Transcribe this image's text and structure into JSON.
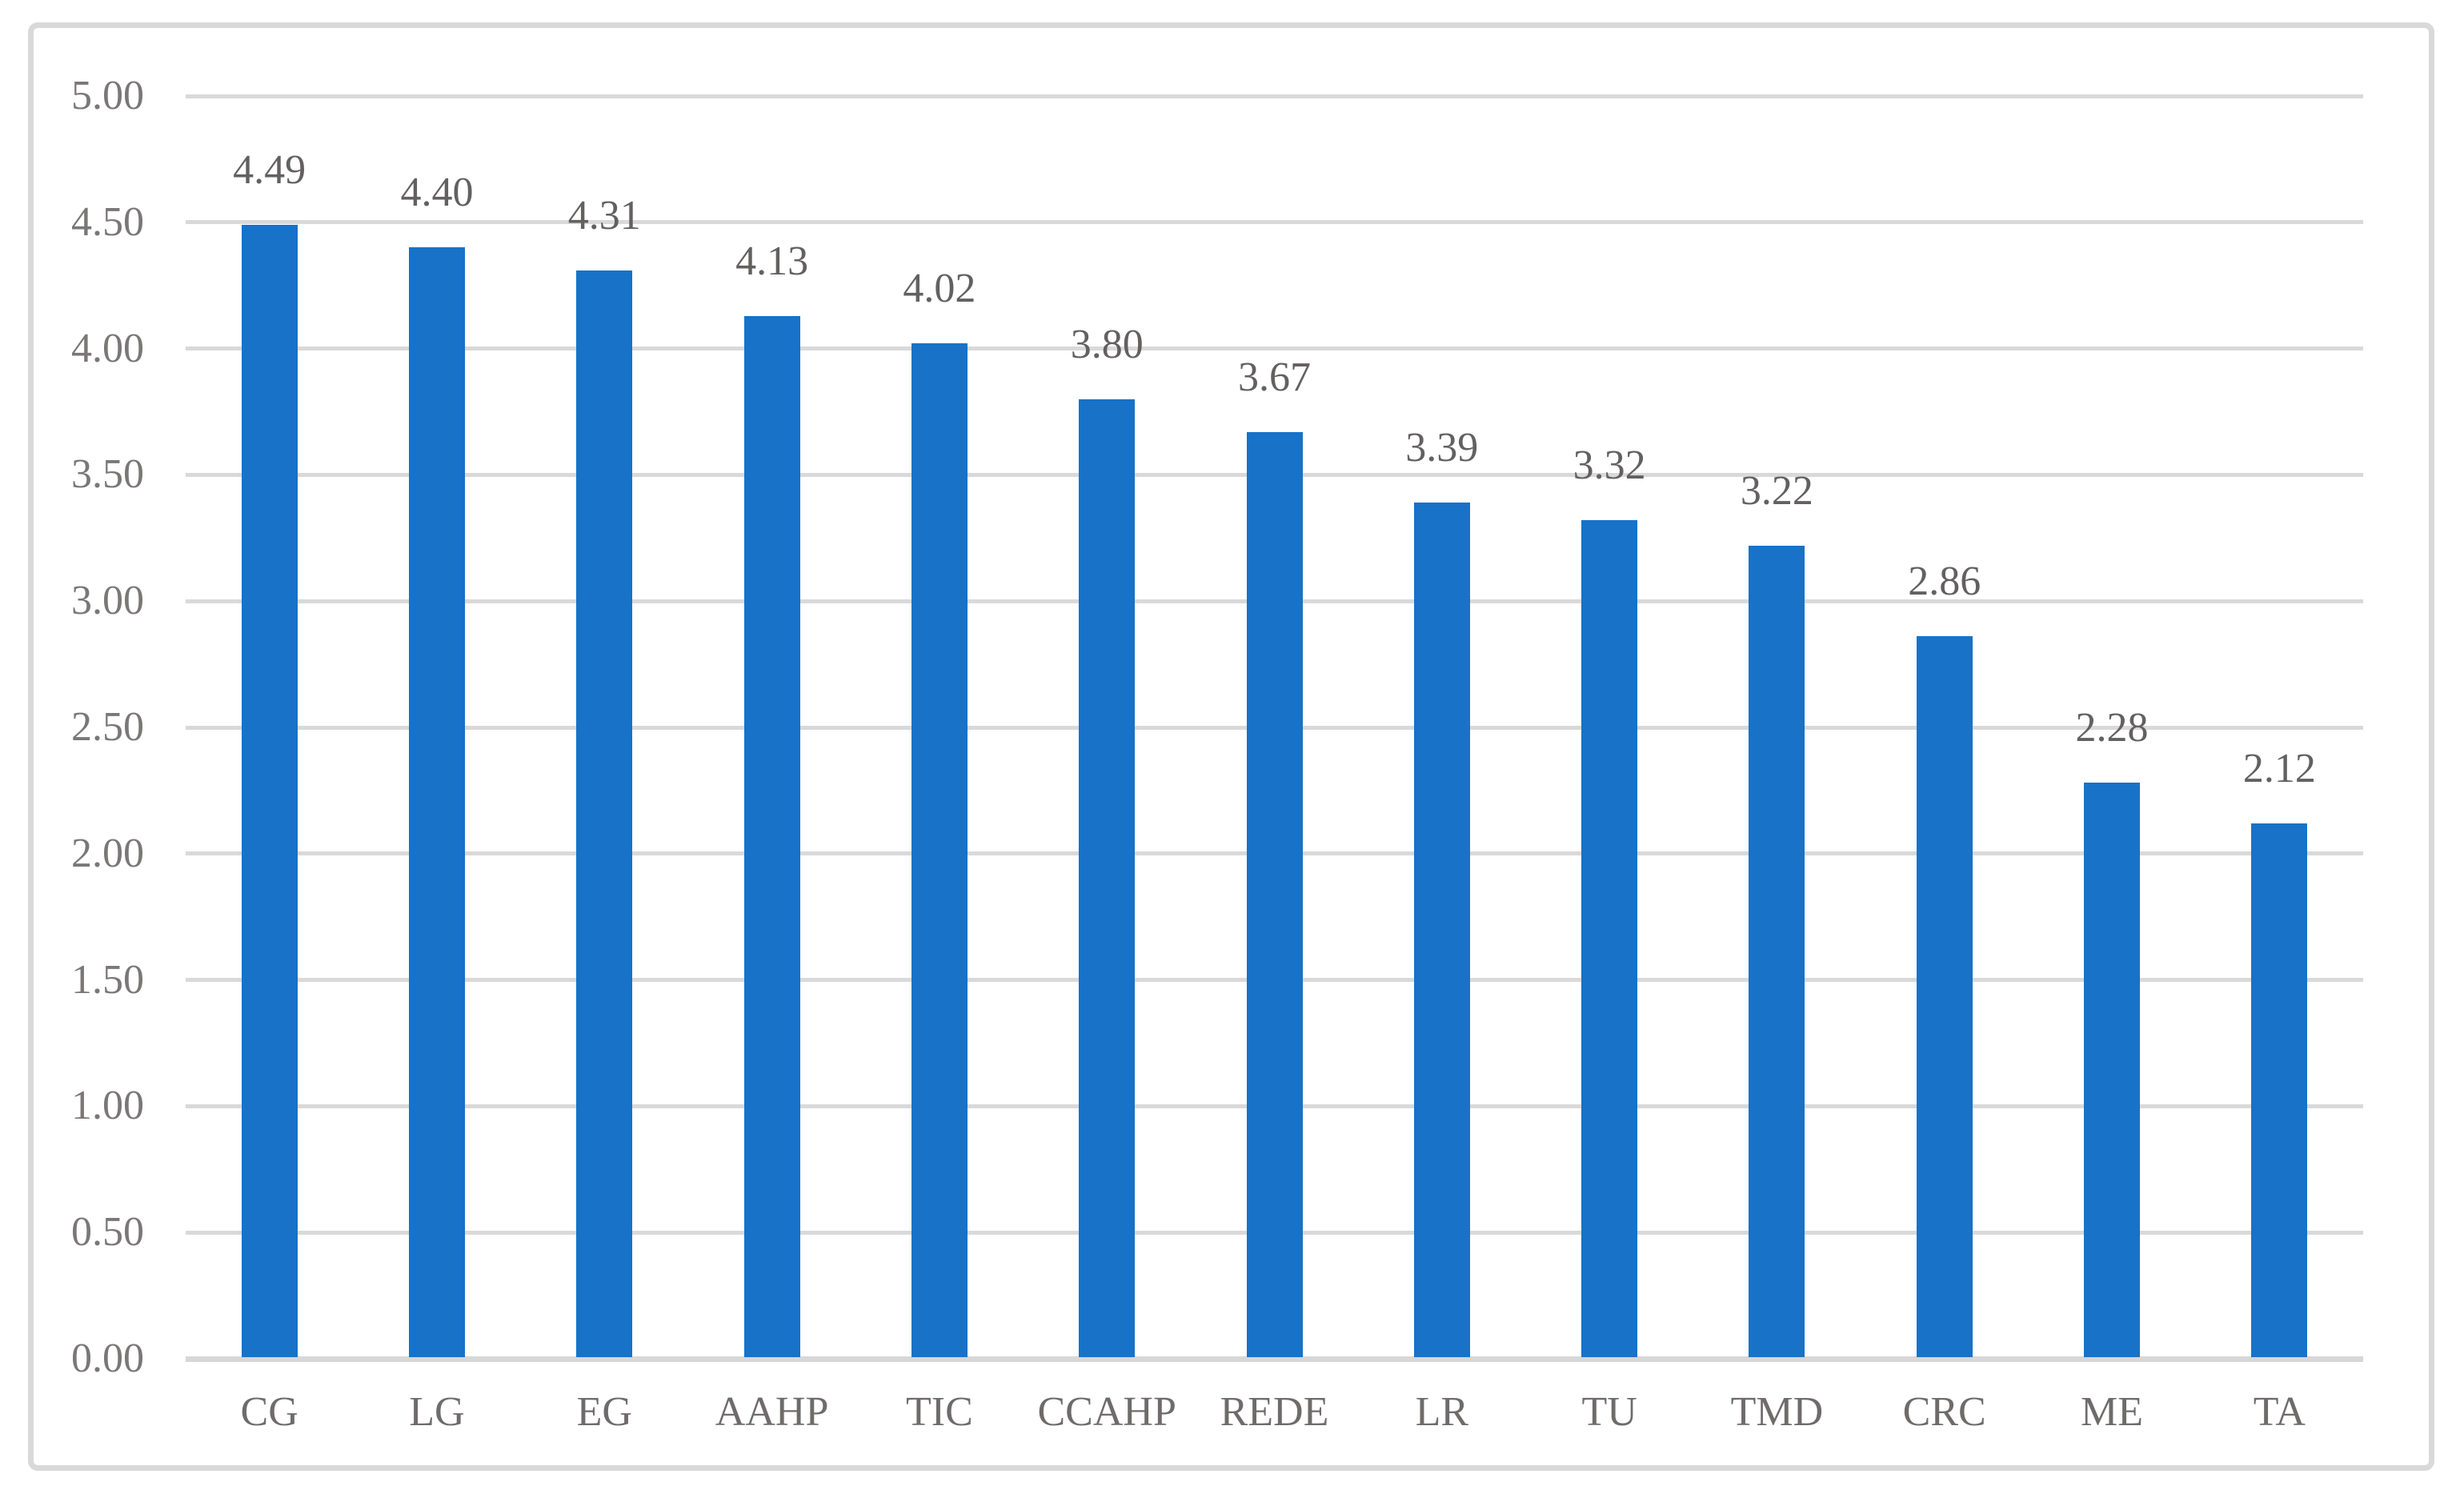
{
  "chart_data": {
    "type": "bar",
    "categories": [
      "CG",
      "LG",
      "EG",
      "AAHP",
      "TIC",
      "CCAHP",
      "REDE",
      "LR",
      "TU",
      "TMD",
      "CRC",
      "ME",
      "TA"
    ],
    "values": [
      4.49,
      4.4,
      4.31,
      4.13,
      4.02,
      3.8,
      3.67,
      3.39,
      3.32,
      3.22,
      2.86,
      2.28,
      2.12
    ],
    "value_labels": [
      "4.49",
      "4.40",
      "4.31",
      "4.13",
      "4.02",
      "3.80",
      "3.67",
      "3.39",
      "3.32",
      "3.22",
      "2.86",
      "2.28",
      "2.12"
    ],
    "title": "",
    "xlabel": "",
    "ylabel": "",
    "ylim": [
      0,
      5
    ],
    "ytick_step": 0.5,
    "ytick_labels": [
      "0.00",
      "0.50",
      "1.00",
      "1.50",
      "2.00",
      "2.50",
      "3.00",
      "3.50",
      "4.00",
      "4.50",
      "5.00"
    ],
    "grid": true,
    "legend": false,
    "data_labels_position": "outside-end",
    "colors": {
      "bar": "#1772c8",
      "gridline": "#d9d9d9",
      "axis_line": "#d7d7d7",
      "frame_border": "#d9d9d9",
      "axis_text": "#7b7777",
      "category_text": "#6f6b6b",
      "value_label_text": "#636060",
      "background": "#ffffff"
    }
  }
}
